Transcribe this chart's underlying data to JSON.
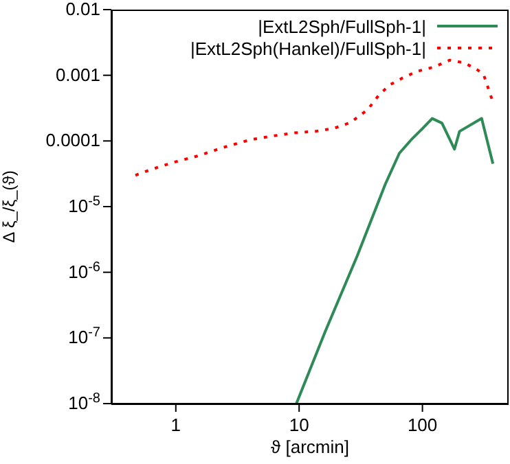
{
  "chart_data": {
    "type": "line",
    "xlabel": "ϑ [arcmin]",
    "ylabel": "Δ ξ_/ξ_(ϑ)",
    "log": "xy",
    "legend": "top right",
    "marker": "none",
    "xlim": [
      0.3,
      500
    ],
    "xticks": [
      1,
      10,
      100
    ],
    "ylim": [
      1e-08,
      0.01
    ],
    "yticks": [
      {
        "value": 1e-08,
        "label": "10$^{-8}$"
      },
      {
        "value": 1e-07,
        "label": "10$^{-7}$"
      },
      {
        "value": 1e-06,
        "label": "10$^{-6}$"
      },
      {
        "value": 1e-05,
        "label": "10$^{-5}$"
      },
      0.0001,
      0.001,
      0.01
    ],
    "series": [
      {
        "name": "|ExtL2Sph/FullSph-1|",
        "color": "#2e8b57",
        "line_style": "solid",
        "x": [
          9.5,
          16.3,
          29.6,
          38,
          50,
          65,
          81,
          100,
          120,
          144,
          182,
          200,
          302,
          373
        ],
        "values": [
          1e-08,
          1.26e-07,
          1.78e-06,
          5.9e-06,
          2.2e-05,
          6.5e-05,
          0.000104,
          0.000154,
          0.00022,
          0.000187,
          7.5e-05,
          0.00014,
          0.00022,
          4.5e-05
        ]
      },
      {
        "name": "|ExtL2Sph(Hankel)/FullSph-1|",
        "color": "#ff0000",
        "line_style": "dotted",
        "x": [
          0.47,
          0.61,
          0.95,
          1.5,
          2.4,
          4.0,
          6.3,
          9.2,
          13.5,
          19,
          26,
          36,
          44,
          54,
          69,
          91,
          123,
          167,
          217,
          268,
          312,
          365
        ],
        "values": [
          3e-05,
          3.6e-05,
          4.7e-05,
          5.9e-05,
          7.9e-05,
          0.000104,
          0.00012,
          0.000133,
          0.00014,
          0.000155,
          0.00019,
          0.0003,
          0.00049,
          0.00071,
          0.00091,
          0.00115,
          0.00133,
          0.0017,
          0.00155,
          0.00127,
          0.00105,
          0.00044
        ]
      }
    ]
  }
}
